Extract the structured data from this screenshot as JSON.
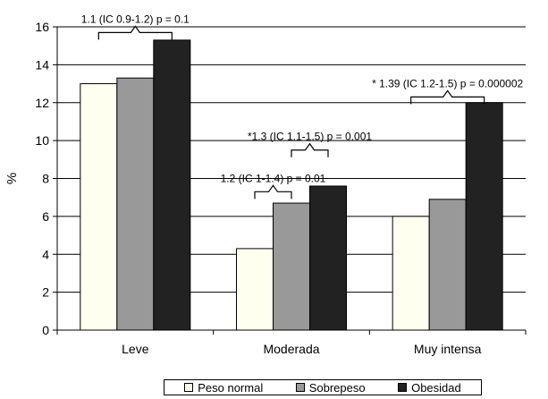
{
  "chart_data": {
    "type": "bar",
    "title": "",
    "xlabel": "",
    "ylabel": "%",
    "ylim": [
      0,
      16
    ],
    "yticks": [
      0,
      2,
      4,
      6,
      8,
      10,
      12,
      14,
      16
    ],
    "grid": true,
    "legend_position": "bottom",
    "categories": [
      "Leve",
      "Moderada",
      "Muy intensa"
    ],
    "series": [
      {
        "name": "Peso normal",
        "color": "#fffff0",
        "values": [
          13.0,
          4.3,
          6.0
        ]
      },
      {
        "name": "Sobrepeso",
        "color": "#999999",
        "values": [
          13.3,
          6.7,
          6.9
        ]
      },
      {
        "name": "Obesidad",
        "color": "#222222",
        "values": [
          15.3,
          7.6,
          12.0
        ]
      }
    ],
    "annotations": [
      {
        "text": "1.1 (IC 0.9-1.2) p = 0.1",
        "category": 0,
        "from_series": 0,
        "to_series": 2,
        "level": 15.7
      },
      {
        "text": "*1.3 (IC 1.1-1.5) p = 0.001",
        "category": 1,
        "from_series": 1,
        "to_series": 2,
        "level": 9.5
      },
      {
        "text": "1.2 (IC 1-1.4) p = 0.01",
        "category": 1,
        "from_series": 0,
        "to_series": 1,
        "level": 7.3
      },
      {
        "text": "* 1.39 (IC 1.2-1.5) p = 0.000002",
        "category": 2,
        "from_series": 0,
        "to_series": 2,
        "level": 12.3
      }
    ]
  }
}
